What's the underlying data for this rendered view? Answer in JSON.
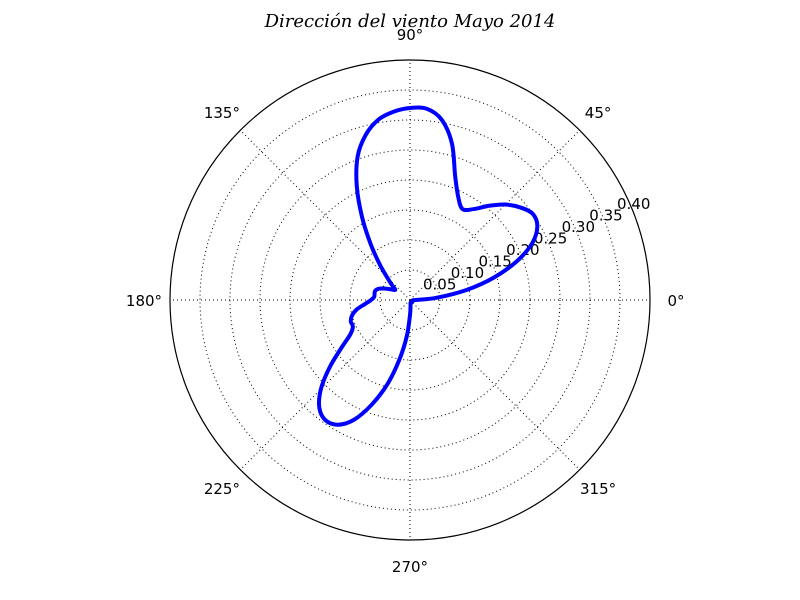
{
  "chart_data": {
    "type": "line",
    "projection": "polar",
    "title": "Dirección del viento Mayo 2014",
    "theta_tick_labels": [
      "0°",
      "45°",
      "90°",
      "135°",
      "180°",
      "225°",
      "270°",
      "315°"
    ],
    "theta_ticks_deg": [
      0,
      45,
      90,
      135,
      180,
      225,
      270,
      315
    ],
    "r_tick_labels": [
      "0.05",
      "0.10",
      "0.15",
      "0.20",
      "0.25",
      "0.30",
      "0.35",
      "0.40"
    ],
    "r_ticks": [
      0.05,
      0.1,
      0.15,
      0.2,
      0.25,
      0.3,
      0.35,
      0.4
    ],
    "rlim": [
      0,
      0.4
    ],
    "grid": true,
    "series": [
      {
        "color": "#0000ff",
        "theta_deg": [
          0,
          5,
          10,
          15,
          20,
          25,
          30,
          35,
          40,
          45,
          50,
          55,
          60,
          65,
          70,
          75,
          80,
          85,
          90,
          95,
          100,
          105,
          110,
          115,
          120,
          125,
          130,
          135,
          140,
          145,
          150,
          155,
          160,
          165,
          170,
          175,
          180,
          185,
          190,
          195,
          200,
          205,
          210,
          215,
          220,
          225,
          230,
          235,
          240,
          245,
          250,
          255,
          260,
          265,
          270,
          275,
          280,
          285,
          290,
          295,
          300,
          305,
          310,
          315,
          320,
          325,
          330,
          335,
          340,
          345,
          350,
          355
        ],
        "r": [
          0.01,
          0.045,
          0.095,
          0.145,
          0.19,
          0.225,
          0.245,
          0.25,
          0.24,
          0.225,
          0.205,
          0.185,
          0.175,
          0.19,
          0.22,
          0.27,
          0.305,
          0.32,
          0.32,
          0.315,
          0.305,
          0.285,
          0.255,
          0.21,
          0.16,
          0.115,
          0.08,
          0.055,
          0.04,
          0.03,
          0.035,
          0.045,
          0.055,
          0.06,
          0.06,
          0.06,
          0.065,
          0.075,
          0.09,
          0.1,
          0.105,
          0.105,
          0.115,
          0.14,
          0.175,
          0.21,
          0.235,
          0.245,
          0.24,
          0.22,
          0.185,
          0.145,
          0.1,
          0.06,
          0.025,
          0.01,
          0.005,
          0.005,
          0.005,
          0.005,
          0.005,
          0.005,
          0.005,
          0.005,
          0.005,
          0.005,
          0.005,
          0.005,
          0.005,
          0.005,
          0.005,
          0.005
        ]
      }
    ]
  }
}
